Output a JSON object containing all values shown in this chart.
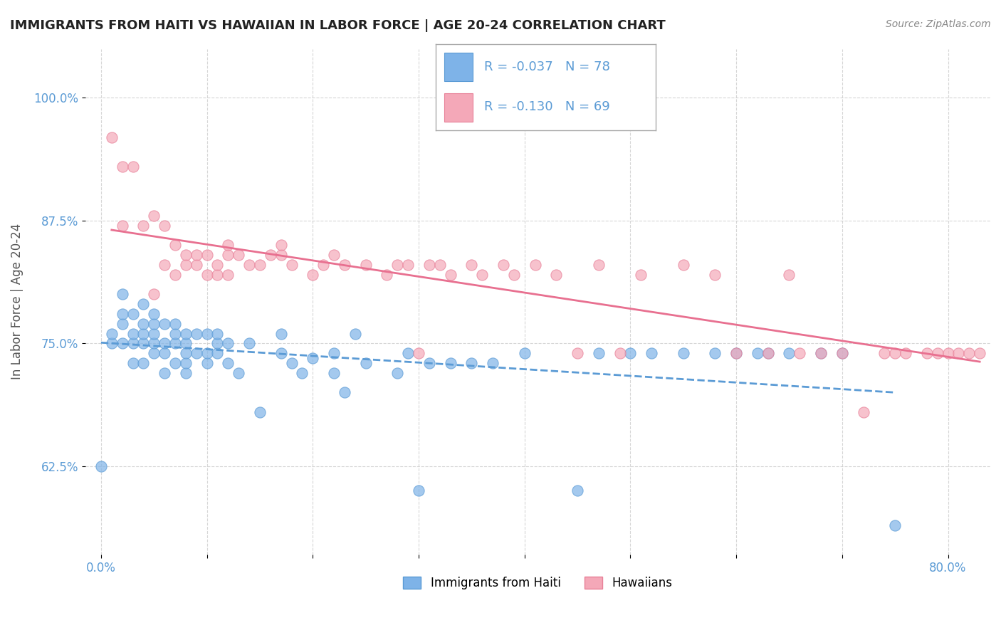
{
  "title": "IMMIGRANTS FROM HAITI VS HAWAIIAN IN LABOR FORCE | AGE 20-24 CORRELATION CHART",
  "source": "Source: ZipAtlas.com",
  "ylabel": "In Labor Force | Age 20-24",
  "x_ticks": [
    0.0,
    0.1,
    0.2,
    0.3,
    0.4,
    0.5,
    0.6,
    0.7,
    0.8
  ],
  "x_tick_labels": [
    "0.0%",
    "",
    "",
    "",
    "",
    "",
    "",
    "",
    "80.0%"
  ],
  "y_ticks": [
    0.625,
    0.75,
    0.875,
    1.0
  ],
  "y_tick_labels": [
    "62.5%",
    "75.0%",
    "87.5%",
    "100.0%"
  ],
  "xlim": [
    -0.015,
    0.84
  ],
  "ylim": [
    0.535,
    1.05
  ],
  "legend_label1": "Immigrants from Haiti",
  "legend_label2": "Hawaiians",
  "R1": -0.037,
  "N1": 78,
  "R2": -0.13,
  "N2": 69,
  "color_blue": "#7EB3E8",
  "color_pink": "#F4A8B8",
  "color_blue_dark": "#5B9BD5",
  "color_pink_dark": "#E88098",
  "trend_color_blue": "#5B9BD5",
  "trend_color_pink": "#E87090",
  "blue_x": [
    0.0,
    0.01,
    0.01,
    0.02,
    0.02,
    0.02,
    0.02,
    0.03,
    0.03,
    0.03,
    0.03,
    0.04,
    0.04,
    0.04,
    0.04,
    0.04,
    0.05,
    0.05,
    0.05,
    0.05,
    0.05,
    0.06,
    0.06,
    0.06,
    0.06,
    0.07,
    0.07,
    0.07,
    0.07,
    0.08,
    0.08,
    0.08,
    0.08,
    0.08,
    0.09,
    0.09,
    0.1,
    0.1,
    0.1,
    0.11,
    0.11,
    0.11,
    0.12,
    0.12,
    0.13,
    0.14,
    0.15,
    0.17,
    0.17,
    0.18,
    0.19,
    0.2,
    0.22,
    0.22,
    0.23,
    0.24,
    0.25,
    0.28,
    0.29,
    0.3,
    0.31,
    0.33,
    0.35,
    0.37,
    0.4,
    0.45,
    0.47,
    0.5,
    0.52,
    0.55,
    0.58,
    0.6,
    0.62,
    0.63,
    0.65,
    0.68,
    0.7,
    0.75
  ],
  "blue_y": [
    0.625,
    0.75,
    0.76,
    0.77,
    0.75,
    0.78,
    0.8,
    0.73,
    0.75,
    0.76,
    0.78,
    0.73,
    0.75,
    0.76,
    0.77,
    0.79,
    0.74,
    0.75,
    0.76,
    0.77,
    0.78,
    0.72,
    0.74,
    0.75,
    0.77,
    0.73,
    0.75,
    0.76,
    0.77,
    0.72,
    0.73,
    0.74,
    0.75,
    0.76,
    0.74,
    0.76,
    0.73,
    0.74,
    0.76,
    0.74,
    0.75,
    0.76,
    0.73,
    0.75,
    0.72,
    0.75,
    0.68,
    0.74,
    0.76,
    0.73,
    0.72,
    0.735,
    0.72,
    0.74,
    0.7,
    0.76,
    0.73,
    0.72,
    0.74,
    0.6,
    0.73,
    0.73,
    0.73,
    0.73,
    0.74,
    0.6,
    0.74,
    0.74,
    0.74,
    0.74,
    0.74,
    0.74,
    0.74,
    0.74,
    0.74,
    0.74,
    0.74,
    0.565
  ],
  "pink_x": [
    0.01,
    0.02,
    0.02,
    0.03,
    0.04,
    0.05,
    0.05,
    0.06,
    0.06,
    0.07,
    0.07,
    0.08,
    0.08,
    0.09,
    0.09,
    0.1,
    0.1,
    0.11,
    0.11,
    0.12,
    0.12,
    0.12,
    0.13,
    0.14,
    0.15,
    0.16,
    0.17,
    0.17,
    0.18,
    0.2,
    0.21,
    0.22,
    0.23,
    0.25,
    0.27,
    0.28,
    0.29,
    0.3,
    0.31,
    0.32,
    0.33,
    0.35,
    0.36,
    0.38,
    0.39,
    0.41,
    0.43,
    0.45,
    0.47,
    0.49,
    0.51,
    0.55,
    0.58,
    0.6,
    0.63,
    0.65,
    0.66,
    0.68,
    0.7,
    0.72,
    0.74,
    0.75,
    0.76,
    0.78,
    0.79,
    0.8,
    0.81,
    0.82,
    0.83
  ],
  "pink_y": [
    0.96,
    0.87,
    0.93,
    0.93,
    0.87,
    0.88,
    0.8,
    0.83,
    0.87,
    0.82,
    0.85,
    0.83,
    0.84,
    0.83,
    0.84,
    0.82,
    0.84,
    0.82,
    0.83,
    0.82,
    0.84,
    0.85,
    0.84,
    0.83,
    0.83,
    0.84,
    0.84,
    0.85,
    0.83,
    0.82,
    0.83,
    0.84,
    0.83,
    0.83,
    0.82,
    0.83,
    0.83,
    0.74,
    0.83,
    0.83,
    0.82,
    0.83,
    0.82,
    0.83,
    0.82,
    0.83,
    0.82,
    0.74,
    0.83,
    0.74,
    0.82,
    0.83,
    0.82,
    0.74,
    0.74,
    0.82,
    0.74,
    0.74,
    0.74,
    0.68,
    0.74,
    0.74,
    0.74,
    0.74,
    0.74,
    0.74,
    0.74,
    0.74,
    0.74
  ],
  "background_color": "#FFFFFF",
  "grid_color": "#CCCCCC",
  "tick_label_color": "#5B9BD5",
  "title_color": "#222222",
  "axis_label_color": "#555555"
}
